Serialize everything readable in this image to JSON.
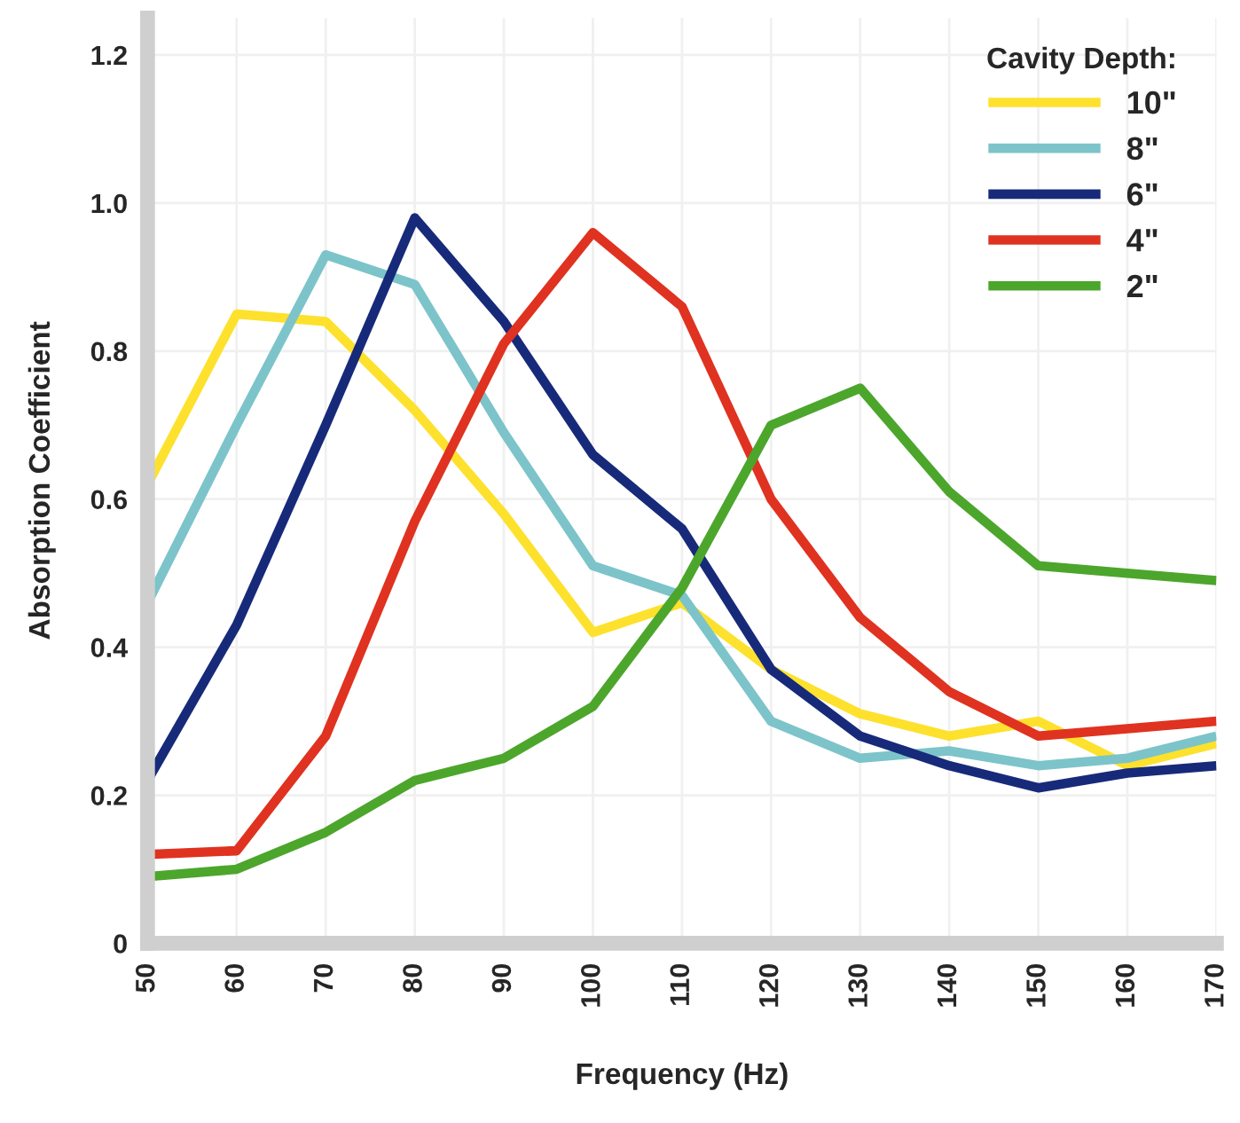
{
  "chart_data": {
    "type": "line",
    "xlabel": "Frequency (Hz)",
    "ylabel": "Absorption Coefficient",
    "legend_title": "Cavity Depth:",
    "x": [
      50,
      60,
      70,
      80,
      90,
      100,
      110,
      120,
      130,
      140,
      150,
      160,
      170
    ],
    "series": [
      {
        "name": "10\"",
        "color": "#fde12d",
        "values": [
          0.62,
          0.85,
          0.84,
          0.72,
          0.58,
          0.42,
          0.46,
          0.37,
          0.31,
          0.28,
          0.3,
          0.24,
          0.27
        ]
      },
      {
        "name": "8\"",
        "color": "#7cc4c9",
        "values": [
          0.46,
          0.7,
          0.93,
          0.89,
          0.69,
          0.51,
          0.47,
          0.3,
          0.25,
          0.26,
          0.24,
          0.25,
          0.28
        ]
      },
      {
        "name": "6\"",
        "color": "#172a7a",
        "values": [
          0.22,
          0.43,
          0.7,
          0.98,
          0.84,
          0.66,
          0.56,
          0.37,
          0.28,
          0.24,
          0.21,
          0.23,
          0.24
        ]
      },
      {
        "name": "4\"",
        "color": "#e03220",
        "values": [
          0.12,
          0.125,
          0.28,
          0.57,
          0.81,
          0.96,
          0.86,
          0.6,
          0.44,
          0.34,
          0.28,
          0.29,
          0.3
        ]
      },
      {
        "name": "2\"",
        "color": "#4ca62c",
        "values": [
          0.09,
          0.1,
          0.15,
          0.22,
          0.25,
          0.32,
          0.48,
          0.7,
          0.75,
          0.61,
          0.51,
          0.5,
          0.49
        ]
      }
    ],
    "xlim": [
      50,
      170
    ],
    "xticks": [
      50,
      60,
      70,
      80,
      90,
      100,
      110,
      120,
      130,
      140,
      150,
      160,
      170
    ],
    "ylim": [
      0,
      1.25
    ],
    "yticks": [
      0,
      0.2,
      0.4,
      0.6,
      0.8,
      {
        "value": 1,
        "label": "1.0"
      },
      1.2
    ],
    "grid": true,
    "legend": "top right",
    "marker": "none",
    "line_style": "solid"
  }
}
